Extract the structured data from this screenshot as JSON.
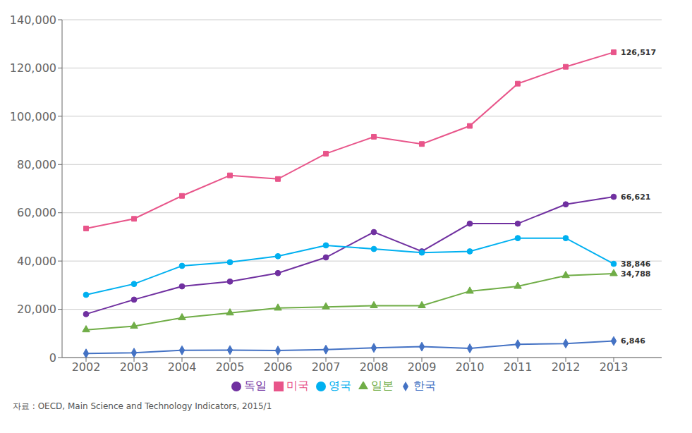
{
  "chart_data": {
    "type": "line",
    "x": [
      2002,
      2003,
      2004,
      2005,
      2006,
      2007,
      2008,
      2009,
      2010,
      2011,
      2012,
      2013
    ],
    "series": [
      {
        "name": "한국",
        "color": "#4472c4",
        "marker": "diamond",
        "values": [
          1700,
          2000,
          3000,
          3100,
          2900,
          3300,
          4000,
          4500,
          3800,
          5500,
          5800,
          6846
        ]
      },
      {
        "name": "미국",
        "color": "#e8558a",
        "marker": "square",
        "values": [
          53500,
          57500,
          67000,
          75500,
          74000,
          84500,
          91500,
          88500,
          96000,
          113500,
          120500,
          126517
        ]
      },
      {
        "name": "일본",
        "color": "#70ad47",
        "marker": "triangle",
        "values": [
          11500,
          13000,
          16500,
          18500,
          20500,
          21000,
          21500,
          21500,
          27500,
          29500,
          34000,
          34788
        ]
      },
      {
        "name": "독일",
        "color": "#7030a0",
        "marker": "circle",
        "values": [
          18000,
          24000,
          29500,
          31500,
          35000,
          41500,
          52000,
          44000,
          55500,
          55500,
          63500,
          66621
        ]
      },
      {
        "name": "영국",
        "color": "#00b0f0",
        "marker": "circle",
        "values": [
          26000,
          30500,
          38000,
          39500,
          42000,
          46500,
          45000,
          43500,
          44000,
          49500,
          49500,
          38846
        ]
      }
    ],
    "xlim": [
      2001.5,
      2014
    ],
    "xticks": [
      2002,
      2003,
      2004,
      2005,
      2006,
      2007,
      2008,
      2009,
      2010,
      2011,
      2012,
      2013
    ],
    "ylim": [
      0,
      140000
    ],
    "yticks": [
      0,
      {
        "value": 20000,
        "label": "20,000"
      },
      {
        "value": 40000,
        "label": "40,000"
      },
      {
        "value": 60000,
        "label": "60,000"
      },
      {
        "value": 80000,
        "label": "80,000"
      },
      {
        "value": 100000,
        "label": "100,000"
      },
      {
        "value": 120000,
        "label": "120,000"
      },
      {
        "value": 140000,
        "label": "140,000"
      }
    ],
    "annotations": [
      {
        "text": "6,846",
        "x": 2013,
        "y": 6846
      },
      {
        "text": "126,517",
        "x": 2013,
        "y": 126517
      },
      {
        "text": "34,788",
        "x": 2013,
        "y": 34788
      },
      {
        "text": "66,621",
        "x": 2013,
        "y": 66621
      },
      {
        "text": "38,846",
        "x": 2013,
        "y": 38846
      }
    ],
    "footer": "자료 : OECD, Main Science and Technology Indicators, 2015/1",
    "grid": true,
    "legend": "bottom"
  }
}
